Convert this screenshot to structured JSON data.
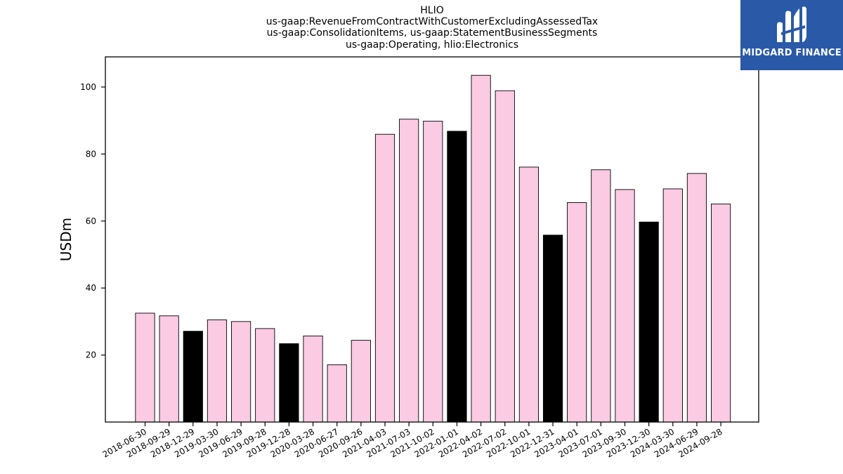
{
  "title": {
    "line1": "HLIO",
    "line2": "us-gaap:RevenueFromContractWithCustomerExcludingAssessedTax",
    "line3": "us-gaap:ConsolidationItems, us-gaap:StatementBusinessSegments",
    "line4": "us-gaap:Operating, hlio:Electronics"
  },
  "logo": {
    "text": "MIDGARD FINANCE",
    "bg": "#2a59a8"
  },
  "colors": {
    "bar_default": "#fbcae3",
    "bar_highlight": "#000000",
    "bar_edge": "#000000"
  },
  "chart_data": {
    "type": "bar",
    "ylabel": "USDm",
    "xlabel": "",
    "ylim": [
      0,
      109
    ],
    "yticks": [
      20,
      40,
      60,
      80,
      100
    ],
    "grid": false,
    "categories": [
      "2018-06-30",
      "2018-09-29",
      "2018-12-29",
      "2019-03-30",
      "2019-06-29",
      "2019-09-28",
      "2019-12-28",
      "2020-03-28",
      "2020-06-27",
      "2020-09-26",
      "2021-04-03",
      "2021-07-03",
      "2021-10-02",
      "2022-01-01",
      "2022-04-02",
      "2022-07-02",
      "2022-10-01",
      "2022-12-31",
      "2023-04-01",
      "2023-07-01",
      "2023-09-30",
      "2023-12-30",
      "2024-03-30",
      "2024-06-29",
      "2024-09-28"
    ],
    "values": [
      32.5,
      31.7,
      27.1,
      30.5,
      30.0,
      27.9,
      23.4,
      25.7,
      17.1,
      24.4,
      85.9,
      90.4,
      89.8,
      86.8,
      103.5,
      98.9,
      76.1,
      55.8,
      65.5,
      75.3,
      69.4,
      59.7,
      69.6,
      74.2,
      65.1
    ],
    "highlighted": [
      false,
      false,
      true,
      false,
      false,
      false,
      true,
      false,
      false,
      false,
      false,
      false,
      false,
      true,
      false,
      false,
      false,
      true,
      false,
      false,
      false,
      true,
      false,
      false,
      false
    ]
  }
}
